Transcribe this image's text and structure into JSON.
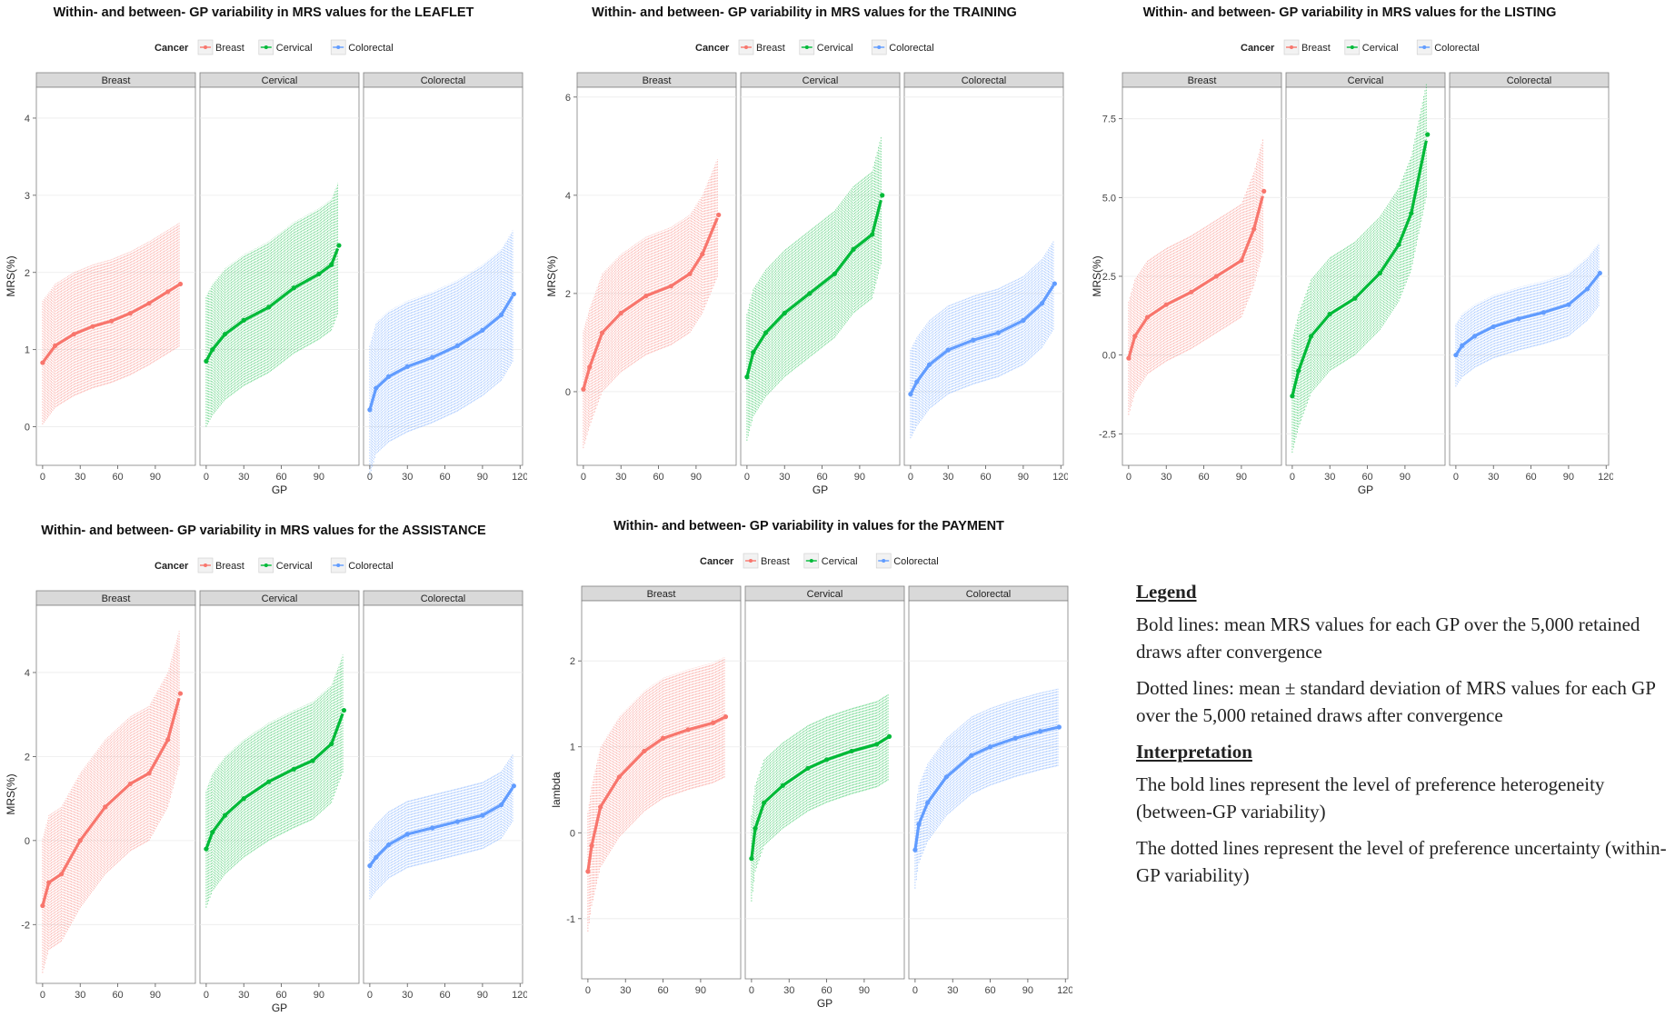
{
  "colors": {
    "Breast": "#f8766d",
    "Cervical": "#00ba38",
    "Colorectal": "#619cff",
    "strip": "#d9d9d9",
    "panel_border": "#7f7f7f",
    "grid": "#ebebeb"
  },
  "legend_panel": {
    "heading1": "Legend",
    "line1": "Bold lines: mean MRS values for each GP over the 5,000 retained draws after convergence",
    "line2": "Dotted lines: mean ± standard deviation of MRS values for each GP over the 5,000 retained draws after convergence",
    "heading2": "Interpretation",
    "line3": "The bold lines represent the level of preference heterogeneity (between-GP variability)",
    "line4": "The dotted lines represent the level of preference uncertainty (within-GP variability)"
  },
  "chart_data": [
    {
      "type": "line",
      "title": "Within- and between- GP variability in MRS values for the LEAFLET",
      "legend_title": "Cancer",
      "legend_entries": [
        "Breast",
        "Cervical",
        "Colorectal"
      ],
      "legend_placement": "top",
      "xlabel": "GP",
      "ylabel": "MRS(%)",
      "ylim": [
        -0.5,
        4.4
      ],
      "yticks": [
        "0",
        "1",
        "2",
        "3",
        "4"
      ],
      "xlim": [
        -5,
        122
      ],
      "xticks": [
        "0",
        "30",
        "60",
        "90",
        "120"
      ],
      "facets": [
        "Breast",
        "Cervical",
        "Colorectal"
      ],
      "series": [
        {
          "facet": "Breast",
          "n_gps": 110,
          "curve_x": [
            0,
            10,
            25,
            40,
            55,
            70,
            85,
            100,
            110
          ],
          "mean": [
            0.83,
            1.05,
            1.2,
            1.3,
            1.37,
            1.47,
            1.6,
            1.75,
            1.85
          ],
          "sd": [
            0.8,
            0.8,
            0.8,
            0.8,
            0.8,
            0.8,
            0.8,
            0.8,
            0.8
          ]
        },
        {
          "facet": "Cervical",
          "n_gps": 106,
          "curve_x": [
            0,
            5,
            15,
            30,
            50,
            70,
            90,
            100,
            106
          ],
          "mean": [
            0.85,
            1.0,
            1.2,
            1.38,
            1.55,
            1.8,
            1.98,
            2.1,
            2.35
          ],
          "sd": [
            0.85,
            0.85,
            0.85,
            0.85,
            0.85,
            0.85,
            0.85,
            0.85,
            0.85
          ]
        },
        {
          "facet": "Colorectal",
          "n_gps": 115,
          "curve_x": [
            0,
            5,
            15,
            30,
            50,
            70,
            90,
            105,
            115
          ],
          "mean": [
            0.22,
            0.5,
            0.65,
            0.78,
            0.9,
            1.05,
            1.25,
            1.45,
            1.72
          ],
          "sd": [
            0.85,
            0.85,
            0.85,
            0.85,
            0.85,
            0.85,
            0.85,
            0.85,
            0.85
          ]
        }
      ]
    },
    {
      "type": "line",
      "title": "Within- and between- GP variability in MRS values for the TRAINING",
      "legend_title": "Cancer",
      "legend_entries": [
        "Breast",
        "Cervical",
        "Colorectal"
      ],
      "legend_placement": "top",
      "xlabel": "GP",
      "ylabel": "MRS(%)",
      "ylim": [
        -1.5,
        6.2
      ],
      "yticks": [
        "0",
        "2",
        "4",
        "6"
      ],
      "xlim": [
        -5,
        122
      ],
      "xticks": [
        "0",
        "30",
        "60",
        "90",
        "120"
      ],
      "facets": [
        "Breast",
        "Cervical",
        "Colorectal"
      ],
      "series": [
        {
          "facet": "Breast",
          "n_gps": 108,
          "curve_x": [
            0,
            5,
            15,
            30,
            50,
            70,
            85,
            95,
            108
          ],
          "mean": [
            0.05,
            0.5,
            1.2,
            1.6,
            1.95,
            2.15,
            2.4,
            2.8,
            3.6
          ],
          "sd": [
            1.2,
            1.2,
            1.2,
            1.2,
            1.2,
            1.2,
            1.2,
            1.2,
            1.2
          ]
        },
        {
          "facet": "Cervical",
          "n_gps": 108,
          "curve_x": [
            0,
            5,
            15,
            30,
            50,
            70,
            85,
            100,
            108
          ],
          "mean": [
            0.3,
            0.8,
            1.2,
            1.6,
            2.0,
            2.4,
            2.9,
            3.2,
            4.0
          ],
          "sd": [
            1.3,
            1.3,
            1.3,
            1.3,
            1.3,
            1.3,
            1.3,
            1.3,
            1.3
          ]
        },
        {
          "facet": "Colorectal",
          "n_gps": 115,
          "curve_x": [
            0,
            5,
            15,
            30,
            50,
            70,
            90,
            105,
            115
          ],
          "mean": [
            -0.05,
            0.2,
            0.55,
            0.85,
            1.05,
            1.2,
            1.45,
            1.8,
            2.2
          ],
          "sd": [
            0.9,
            0.9,
            0.9,
            0.9,
            0.9,
            0.9,
            0.9,
            0.9,
            0.9
          ]
        }
      ]
    },
    {
      "type": "line",
      "title": "Within- and between- GP variability in MRS values for the LISTING",
      "legend_title": "Cancer",
      "legend_entries": [
        "Breast",
        "Cervical",
        "Colorectal"
      ],
      "legend_placement": "top",
      "xlabel": "GP",
      "ylabel": "MRS(%)",
      "ylim": [
        -3.5,
        8.5
      ],
      "yticks": [
        "-2.5",
        "0.0",
        "2.5",
        "5.0",
        "7.5"
      ],
      "xlim": [
        -5,
        122
      ],
      "xticks": [
        "0",
        "30",
        "60",
        "90",
        "120"
      ],
      "facets": [
        "Breast",
        "Cervical",
        "Colorectal"
      ],
      "series": [
        {
          "facet": "Breast",
          "n_gps": 108,
          "curve_x": [
            0,
            5,
            15,
            30,
            50,
            70,
            90,
            100,
            108
          ],
          "mean": [
            -0.1,
            0.6,
            1.2,
            1.6,
            2.0,
            2.5,
            3.0,
            4.0,
            5.2
          ],
          "sd": [
            1.8,
            1.8,
            1.8,
            1.8,
            1.8,
            1.8,
            1.8,
            1.8,
            1.8
          ]
        },
        {
          "facet": "Cervical",
          "n_gps": 108,
          "curve_x": [
            0,
            5,
            15,
            30,
            50,
            70,
            85,
            95,
            108
          ],
          "mean": [
            -1.3,
            -0.5,
            0.6,
            1.3,
            1.8,
            2.6,
            3.5,
            4.5,
            7.0
          ],
          "sd": [
            1.8,
            1.8,
            1.8,
            1.8,
            1.8,
            1.8,
            1.8,
            1.8,
            1.8
          ]
        },
        {
          "facet": "Colorectal",
          "n_gps": 115,
          "curve_x": [
            0,
            5,
            15,
            30,
            50,
            70,
            90,
            105,
            115
          ],
          "mean": [
            0.0,
            0.3,
            0.6,
            0.9,
            1.15,
            1.35,
            1.6,
            2.1,
            2.6
          ],
          "sd": [
            1.0,
            1.0,
            1.0,
            1.0,
            1.0,
            1.0,
            1.0,
            1.0,
            1.0
          ]
        }
      ]
    },
    {
      "type": "line",
      "title": "Within- and between- GP variability in MRS values for the ASSISTANCE",
      "legend_title": "Cancer",
      "legend_entries": [
        "Breast",
        "Cervical",
        "Colorectal"
      ],
      "legend_placement": "top",
      "xlabel": "GP",
      "ylabel": "MRS(%)",
      "ylim": [
        -3.4,
        5.6
      ],
      "yticks": [
        "-2",
        "0",
        "2",
        "4"
      ],
      "xlim": [
        -5,
        122
      ],
      "xticks": [
        "0",
        "30",
        "60",
        "90",
        "120"
      ],
      "facets": [
        "Breast",
        "Cervical",
        "Colorectal"
      ],
      "series": [
        {
          "facet": "Breast",
          "n_gps": 110,
          "curve_x": [
            0,
            5,
            15,
            30,
            50,
            70,
            85,
            100,
            110
          ],
          "mean": [
            -1.55,
            -1.0,
            -0.8,
            0.0,
            0.8,
            1.35,
            1.6,
            2.4,
            3.5
          ],
          "sd": [
            1.6,
            1.6,
            1.6,
            1.6,
            1.6,
            1.6,
            1.6,
            1.6,
            1.6
          ]
        },
        {
          "facet": "Cervical",
          "n_gps": 110,
          "curve_x": [
            0,
            5,
            15,
            30,
            50,
            70,
            85,
            100,
            110
          ],
          "mean": [
            -0.2,
            0.2,
            0.6,
            1.0,
            1.4,
            1.7,
            1.9,
            2.3,
            3.1
          ],
          "sd": [
            1.4,
            1.4,
            1.4,
            1.4,
            1.4,
            1.4,
            1.4,
            1.4,
            1.4
          ]
        },
        {
          "facet": "Colorectal",
          "n_gps": 115,
          "curve_x": [
            0,
            5,
            15,
            30,
            50,
            70,
            90,
            105,
            115
          ],
          "mean": [
            -0.6,
            -0.4,
            -0.1,
            0.15,
            0.3,
            0.45,
            0.6,
            0.85,
            1.3
          ],
          "sd": [
            0.8,
            0.8,
            0.8,
            0.8,
            0.8,
            0.8,
            0.8,
            0.8,
            0.8
          ]
        }
      ]
    },
    {
      "type": "line",
      "title": "Within- and between- GP variability in values for the PAYMENT",
      "legend_title": "Cancer",
      "legend_entries": [
        "Breast",
        "Cervical",
        "Colorectal"
      ],
      "legend_placement": "top",
      "xlabel": "GP",
      "ylabel": "lambda",
      "ylim": [
        -1.7,
        2.7
      ],
      "yticks": [
        "-1",
        "0",
        "1",
        "2"
      ],
      "xlim": [
        -5,
        122
      ],
      "xticks": [
        "0",
        "30",
        "60",
        "90",
        "120"
      ],
      "facets": [
        "Breast",
        "Cervical",
        "Colorectal"
      ],
      "series": [
        {
          "facet": "Breast",
          "n_gps": 110,
          "curve_x": [
            0,
            3,
            10,
            25,
            45,
            60,
            80,
            100,
            110
          ],
          "mean": [
            -0.45,
            -0.15,
            0.3,
            0.65,
            0.95,
            1.1,
            1.2,
            1.28,
            1.35
          ],
          "sd": [
            0.7,
            0.7,
            0.7,
            0.7,
            0.7,
            0.7,
            0.7,
            0.7,
            0.7
          ]
        },
        {
          "facet": "Cervical",
          "n_gps": 110,
          "curve_x": [
            0,
            3,
            10,
            25,
            45,
            60,
            80,
            100,
            110
          ],
          "mean": [
            -0.3,
            0.05,
            0.35,
            0.55,
            0.75,
            0.85,
            0.95,
            1.03,
            1.12
          ],
          "sd": [
            0.5,
            0.5,
            0.5,
            0.5,
            0.5,
            0.5,
            0.5,
            0.5,
            0.5
          ]
        },
        {
          "facet": "Colorectal",
          "n_gps": 115,
          "curve_x": [
            0,
            3,
            10,
            25,
            45,
            60,
            80,
            100,
            115
          ],
          "mean": [
            -0.2,
            0.1,
            0.35,
            0.65,
            0.9,
            1.0,
            1.1,
            1.18,
            1.23
          ],
          "sd": [
            0.45,
            0.45,
            0.45,
            0.45,
            0.45,
            0.45,
            0.45,
            0.45,
            0.45
          ]
        }
      ]
    }
  ]
}
